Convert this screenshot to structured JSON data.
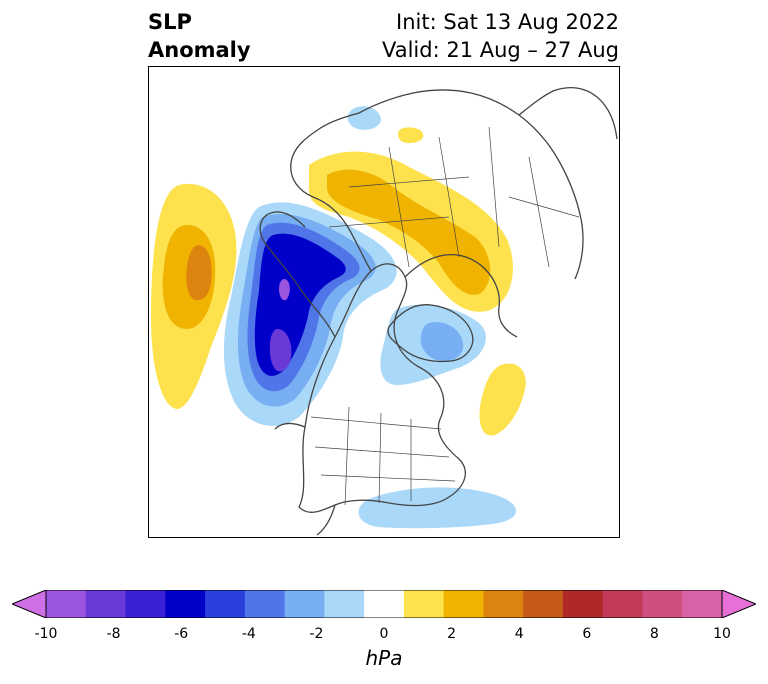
{
  "title": {
    "left_line1": "SLP",
    "left_line2": "Anomaly",
    "right_line1": "Init: Sat 13 Aug 2022",
    "right_line2": "Valid: 21 Aug – 27 Aug"
  },
  "colorbar": {
    "units": "hPa",
    "ticks": [
      "-10",
      "-8",
      "-6",
      "-4",
      "-2",
      "0",
      "2",
      "4",
      "6",
      "8",
      "10"
    ],
    "min": -10,
    "max": 10,
    "extend": "both",
    "colors": [
      "#d070e6",
      "#9b55df",
      "#6a3ad9",
      "#3a21d6",
      "#0000c9",
      "#2a40dd",
      "#4f75e8",
      "#78aef2",
      "#aad8f8",
      "#ffffff",
      "#fde24e",
      "#f0b400",
      "#dd8410",
      "#c55a19",
      "#b02828",
      "#c23a58",
      "#cf5080",
      "#d862a8",
      "#e670d8"
    ]
  },
  "map": {
    "projection": "north-polar-stereographic",
    "colors": {
      "land_outline": "#444444",
      "positive_weak": "#fde24e",
      "positive_mid": "#f0b400",
      "positive_strong": "#dd8410",
      "negative_weak": "#aad8f8",
      "negative_mid": "#78aef2",
      "negative_strong": "#4f75e8",
      "negative_deep": "#0000c9",
      "negative_core": "#9b55df"
    }
  }
}
